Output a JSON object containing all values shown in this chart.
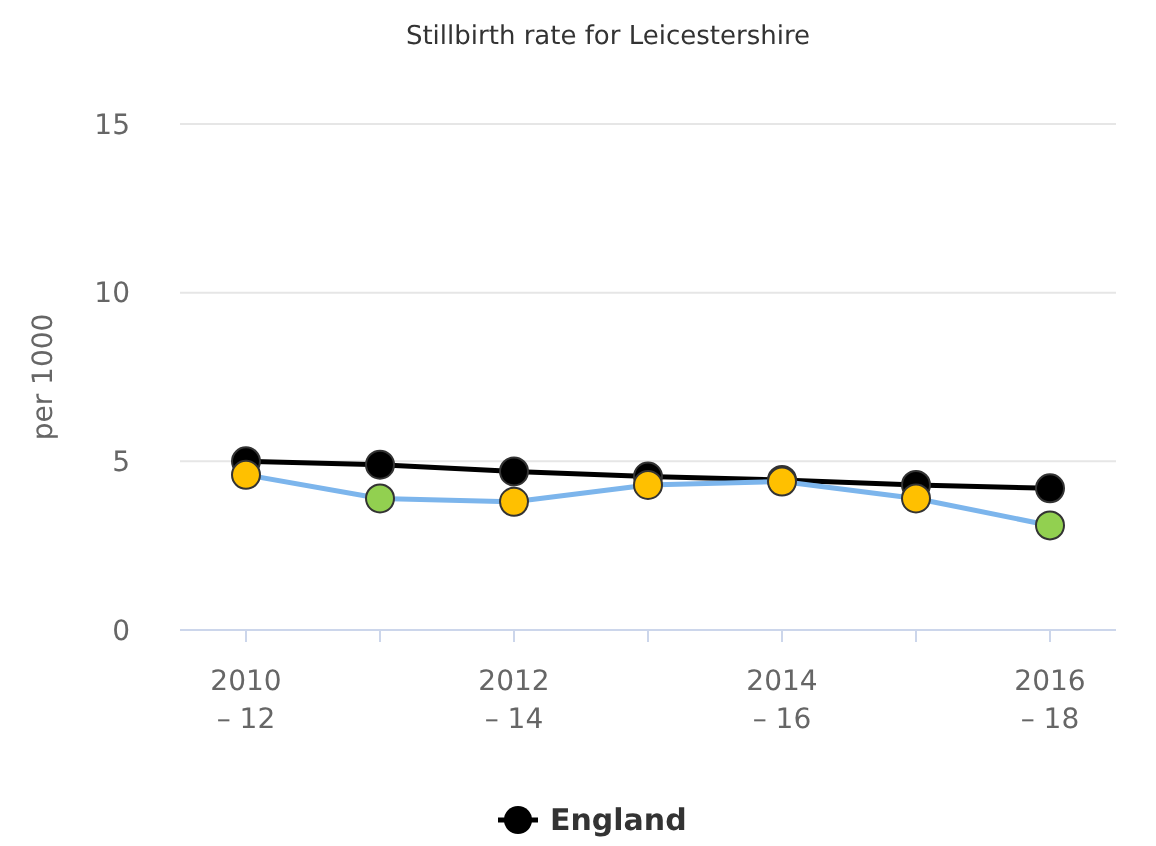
{
  "chart_data": {
    "type": "line",
    "title": "Stillbirth rate for Leicestershire",
    "ylabel": "per 1000",
    "categories": [
      "2010\n– 12",
      null,
      "2012\n– 14",
      null,
      "2014\n– 16",
      null,
      "2016\n– 18"
    ],
    "series": [
      {
        "color": "#7cb5ec",
        "colors": [
          "#ffc000",
          "#92d050",
          "#ffc000",
          "#ffc000",
          "#ffc000",
          "#ffc000",
          "#92d050"
        ],
        "values": [
          4.6,
          3.9,
          3.8,
          4.3,
          4.4,
          3.9,
          3.1
        ]
      },
      {
        "name": "England",
        "color": "#000000",
        "values": [
          5.0,
          4.9,
          4.7,
          4.55,
          4.45,
          4.3,
          4.2
        ]
      }
    ],
    "ylim": [
      0,
      15
    ],
    "yticks": [
      0,
      5,
      10,
      15
    ],
    "grid": "y",
    "legend": "bottom",
    "marker": "circle",
    "line_style": "solid"
  }
}
